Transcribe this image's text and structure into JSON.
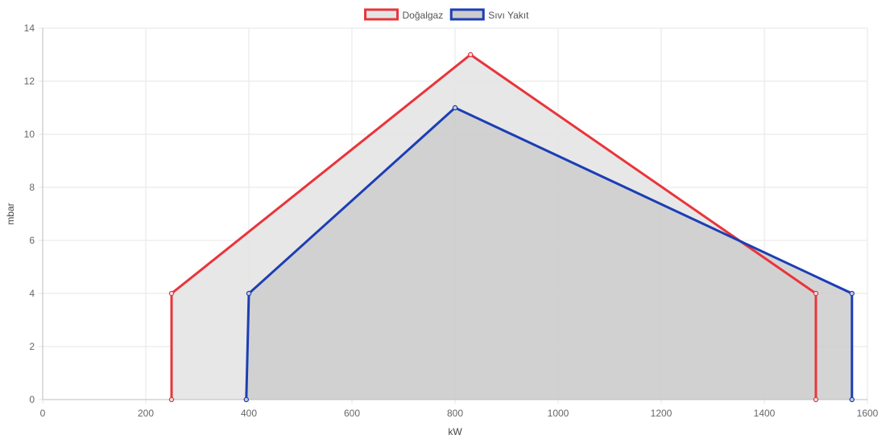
{
  "chart_data": {
    "type": "area",
    "xlabel": "kW",
    "ylabel": "mbar",
    "xlim": [
      0,
      1600
    ],
    "ylim": [
      0,
      14
    ],
    "x_ticks": [
      0,
      200,
      400,
      600,
      800,
      1000,
      1200,
      1400,
      1600
    ],
    "y_ticks": [
      0,
      2,
      4,
      6,
      8,
      10,
      12,
      14
    ],
    "grid": true,
    "legend_position": "top-center",
    "series": [
      {
        "name": "Doğalgaz",
        "color": "#e8353b",
        "fill": "#e4e4e4",
        "points": [
          {
            "x": 250,
            "y": 0
          },
          {
            "x": 250,
            "y": 4
          },
          {
            "x": 830,
            "y": 13
          },
          {
            "x": 1500,
            "y": 4
          },
          {
            "x": 1500,
            "y": 0
          }
        ]
      },
      {
        "name": "Sıvı Yakıt",
        "color": "#1c3eb4",
        "fill": "#cccccc",
        "points": [
          {
            "x": 395,
            "y": 0
          },
          {
            "x": 400,
            "y": 4
          },
          {
            "x": 800,
            "y": 11
          },
          {
            "x": 1570,
            "y": 4
          },
          {
            "x": 1570,
            "y": 0
          }
        ]
      }
    ]
  }
}
